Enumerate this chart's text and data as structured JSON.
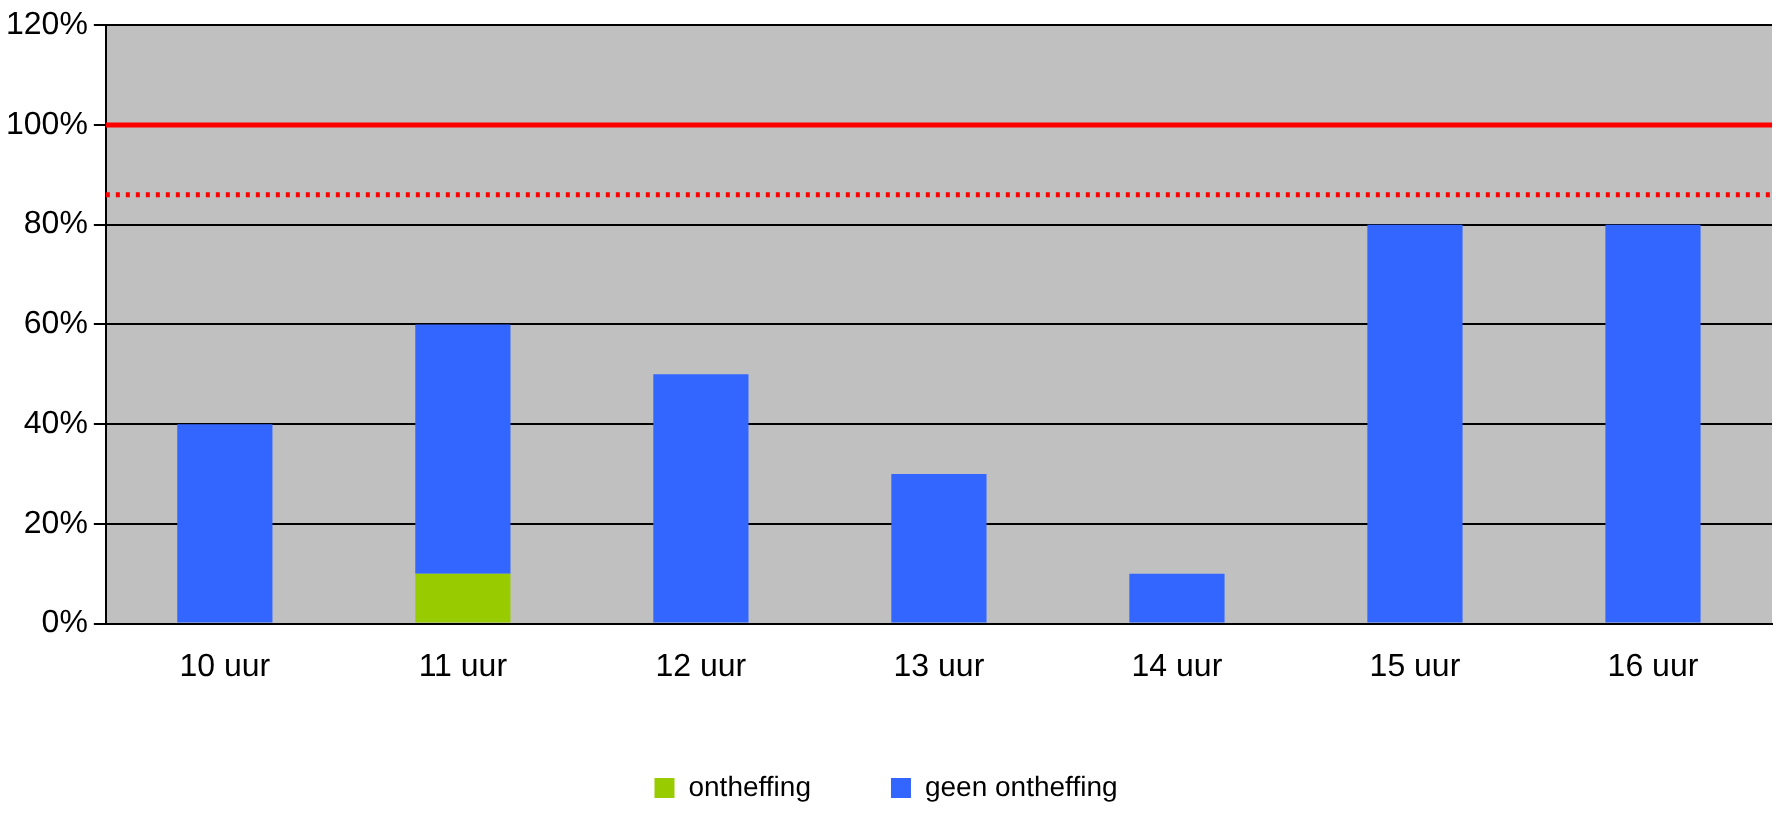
{
  "chart_data": {
    "type": "bar",
    "stacked": true,
    "categories": [
      "10 uur",
      "11 uur",
      "12 uur",
      "13 uur",
      "14 uur",
      "15 uur",
      "16 uur"
    ],
    "series": [
      {
        "name": "ontheffing",
        "color": "#99cc00",
        "values": [
          null,
          10,
          null,
          null,
          null,
          null,
          null
        ]
      },
      {
        "name": "geen ontheffing",
        "color": "#3366ff",
        "values": [
          40,
          50,
          50,
          30,
          10,
          80,
          80
        ]
      }
    ],
    "ylim": [
      0,
      120
    ],
    "yticks": [
      {
        "value": 0,
        "label": "0%"
      },
      {
        "value": 20,
        "label": "20%"
      },
      {
        "value": 40,
        "label": "40%"
      },
      {
        "value": 60,
        "label": "60%"
      },
      {
        "value": 80,
        "label": "80%"
      },
      {
        "value": 100,
        "label": "100%"
      },
      {
        "value": 120,
        "label": "120%"
      }
    ],
    "grid": "y",
    "legend": "bottom",
    "ref_lines": [
      {
        "axis": "y",
        "value": 100,
        "color": "#ff0000",
        "line_style": "solid"
      },
      {
        "axis": "y",
        "value": 86,
        "color": "#ff0000",
        "line_style": "dotted"
      }
    ]
  }
}
